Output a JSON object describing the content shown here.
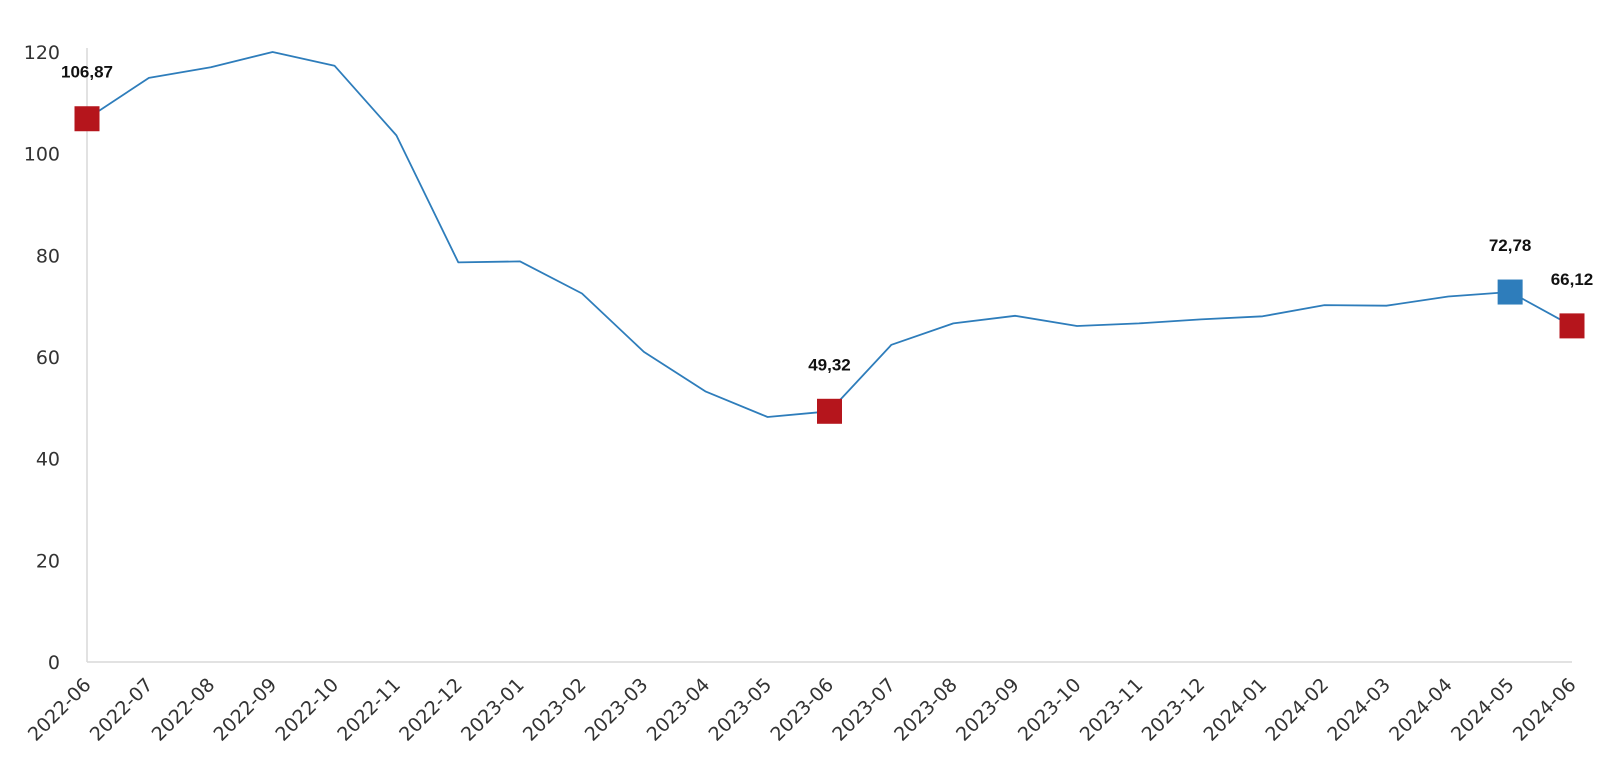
{
  "chart_data": {
    "type": "line",
    "title": "",
    "xlabel": "",
    "ylabel": "",
    "ylim": [
      0,
      120
    ],
    "yticks": [
      0,
      20,
      40,
      60,
      80,
      100,
      120
    ],
    "grid": false,
    "legend": "none",
    "categories": [
      "2022-06",
      "2022-07",
      "2022-08",
      "2022-09",
      "2022-10",
      "2022-11",
      "2022-12",
      "2023-01",
      "2023-02",
      "2023-03",
      "2023-04",
      "2023-05",
      "2023-06",
      "2023-07",
      "2023-08",
      "2023-09",
      "2023-10",
      "2023-11",
      "2023-12",
      "2024-01",
      "2024-02",
      "2024-03",
      "2024-04",
      "2024-05",
      "2024-06"
    ],
    "series": [
      {
        "name": "",
        "color": "#2e7dbb",
        "values": [
          106.87,
          114.9,
          117.0,
          120.0,
          117.3,
          103.6,
          78.6,
          78.8,
          72.5,
          61.0,
          53.2,
          48.2,
          49.32,
          62.4,
          66.6,
          68.1,
          66.1,
          66.6,
          67.4,
          68.0,
          70.2,
          70.1,
          71.9,
          72.78,
          66.12
        ]
      }
    ],
    "highlighted_points": [
      {
        "index": 0,
        "label": "106,87",
        "color": "#b5151c"
      },
      {
        "index": 12,
        "label": "49,32",
        "color": "#b5151c"
      },
      {
        "index": 23,
        "label": "72,78",
        "color": "#2e7dbb"
      },
      {
        "index": 24,
        "label": "66,12",
        "color": "#b5151c"
      }
    ]
  }
}
